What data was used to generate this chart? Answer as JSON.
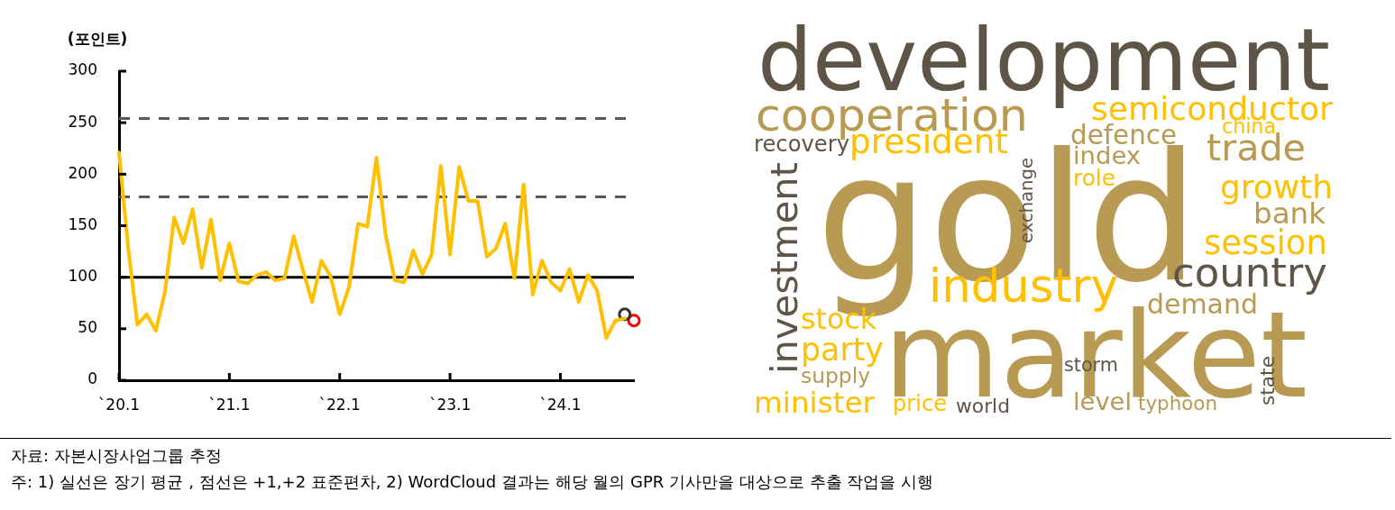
{
  "chart_data": [
    {
      "type": "line",
      "ylabel": "(포인트)",
      "xlim": [
        "2020-01",
        "2024-09"
      ],
      "ylim": [
        0,
        300
      ],
      "yticks": [
        0,
        50,
        100,
        150,
        200,
        250,
        300
      ],
      "xticks": [
        {
          "value": "2020-01",
          "label": "`20.1"
        },
        {
          "value": "2021-01",
          "label": "`21.1"
        },
        {
          "value": "2022-01",
          "label": "`22.1"
        },
        {
          "value": "2023-01",
          "label": "`23.1"
        },
        {
          "value": "2024-01",
          "label": "`24.1"
        }
      ],
      "series": [
        {
          "type": "line",
          "color": "#ffc000",
          "marker": "none",
          "line_style": "solid",
          "x": [
            "2020-01",
            "2020-02",
            "2020-03",
            "2020-04",
            "2020-05",
            "2020-06",
            "2020-07",
            "2020-08",
            "2020-09",
            "2020-10",
            "2020-11",
            "2020-12",
            "2021-01",
            "2021-02",
            "2021-03",
            "2021-04",
            "2021-05",
            "2021-06",
            "2021-07",
            "2021-08",
            "2021-09",
            "2021-10",
            "2021-11",
            "2021-12",
            "2022-01",
            "2022-02",
            "2022-03",
            "2022-04",
            "2022-05",
            "2022-06",
            "2022-07",
            "2022-08",
            "2022-09",
            "2022-10",
            "2022-11",
            "2022-12",
            "2023-01",
            "2023-02",
            "2023-03",
            "2023-04",
            "2023-05",
            "2023-06",
            "2023-07",
            "2023-08",
            "2023-09",
            "2023-10",
            "2023-11",
            "2023-12",
            "2024-01",
            "2024-02",
            "2024-03",
            "2024-04",
            "2024-05",
            "2024-06",
            "2024-07",
            "2024-08"
          ],
          "values": [
            221,
            128,
            54,
            64,
            48,
            86,
            158,
            133,
            166,
            109,
            156,
            97,
            133,
            96,
            94,
            102,
            105,
            97,
            99,
            140,
            107,
            76,
            116,
            101,
            64,
            90,
            152,
            149,
            216,
            141,
            97,
            95,
            126,
            103,
            122,
            208,
            122,
            207,
            174,
            174,
            120,
            128,
            152,
            99,
            190,
            83,
            116,
            95,
            87,
            108,
            76,
            102,
            87,
            41,
            58,
            60
          ]
        },
        {
          "type": "scatter",
          "color": "#333333",
          "marker": "circle",
          "x": [
            "2024-08"
          ],
          "values": [
            64
          ]
        },
        {
          "type": "scatter",
          "color": "#ff0000",
          "marker": "circle",
          "x": [
            "2024-09"
          ],
          "values": [
            58
          ]
        }
      ],
      "ref_lines": [
        {
          "axis": "y",
          "value": 100,
          "color": "#000000",
          "line_style": "solid"
        },
        {
          "axis": "y",
          "value": 178,
          "color": "#595959",
          "line_style": "dashed"
        },
        {
          "axis": "y",
          "value": 254,
          "color": "#595959",
          "line_style": "dashed"
        }
      ],
      "annotations": [
        "자료: 자본시장사업그룹 추정",
        "주: 1) 실선은 장기 평균 , 점선은 +1,+2 표준편차, 2) WordCloud 결과는 해당 월의 GPR 기사만을 대상으로 추출 작업을 시행"
      ]
    },
    {
      "type": "other",
      "annotations": [
        "development",
        "gold",
        "market",
        "cooperation",
        "semiconductor",
        "president",
        "recovery",
        "defence",
        "china",
        "trade",
        "index",
        "role",
        "exchange",
        "investment",
        "growth",
        "bank",
        "session",
        "country",
        "industry",
        "demand",
        "stock",
        "party",
        "supply",
        "storm",
        "state",
        "minister",
        "price",
        "world",
        "level",
        "typhoon"
      ],
      "colors": [
        "#5f5547",
        "#b89a52",
        "#b89a52",
        "#b89a52",
        "#ffc000",
        "#ffc000",
        "#5f5547",
        "#b89a52",
        "#ffc000",
        "#b89a52",
        "#b89a52",
        "#ffc000",
        "#5f5547",
        "#5f5547",
        "#ffc000",
        "#b89a52",
        "#ffc000",
        "#5f5547",
        "#ffc000",
        "#b89a52",
        "#ffc000",
        "#ffc000",
        "#b89a52",
        "#5f5547",
        "#5f5547",
        "#ffc000",
        "#ffc000",
        "#5f5547",
        "#b89a52",
        "#b89a52"
      ]
    }
  ]
}
